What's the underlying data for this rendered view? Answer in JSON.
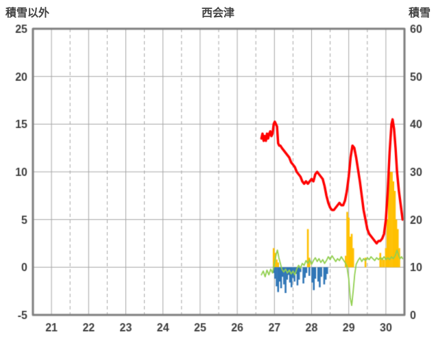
{
  "chart_data": {
    "type": "line",
    "title": "西会津",
    "grid": true,
    "legend": "none",
    "x_axis": {
      "min": 20.5,
      "max": 30.5,
      "ticks": [
        21,
        22,
        23,
        24,
        25,
        26,
        27,
        28,
        29,
        30
      ],
      "minor_ticks": [
        21.5,
        22.5,
        23.5,
        24.5,
        25.5,
        26.5,
        27.5,
        28.5,
        29.5
      ]
    },
    "left_axis": {
      "title": "積雪以外",
      "min": -5,
      "max": 25,
      "ticks": [
        25,
        20,
        15,
        10,
        5,
        0,
        -5
      ]
    },
    "right_axis": {
      "title": "積雪",
      "min": 0,
      "max": 60,
      "ticks": [
        60,
        50,
        40,
        30,
        20,
        10,
        0
      ]
    },
    "colors": {
      "border": "#7F7F7F",
      "grid": "#A6A6A6",
      "tick_text": "#404040",
      "red_line": "#FF0000",
      "green_line": "#92D050",
      "orange_bars": "#FFC000",
      "blue_bars": "#2E75B6"
    },
    "series": [
      {
        "name": "orange_bars",
        "type": "bar",
        "axis": "left",
        "color": "#FFC000",
        "bar_width": 2.6,
        "points": [
          [
            26.98,
            2
          ],
          [
            27.02,
            1.5
          ],
          [
            27.06,
            0.8
          ],
          [
            27.1,
            0.5
          ],
          [
            27.9,
            4
          ],
          [
            27.94,
            1
          ],
          [
            28.92,
            1.2
          ],
          [
            28.96,
            5.8
          ],
          [
            29,
            5.2
          ],
          [
            29.04,
            3.2
          ],
          [
            29.08,
            3.5
          ],
          [
            29.12,
            2
          ],
          [
            29.45,
            1
          ],
          [
            29.85,
            1.5
          ],
          [
            29.9,
            1
          ],
          [
            29.95,
            0.8
          ],
          [
            30,
            2
          ],
          [
            30.04,
            5
          ],
          [
            30.08,
            9
          ],
          [
            30.12,
            10
          ],
          [
            30.16,
            10
          ],
          [
            30.2,
            9
          ],
          [
            30.24,
            8
          ],
          [
            30.28,
            5
          ],
          [
            30.32,
            4
          ],
          [
            30.36,
            2
          ]
        ]
      },
      {
        "name": "blue_bars",
        "type": "bar",
        "axis": "left",
        "color": "#2E75B6",
        "bar_width": 2.6,
        "points": [
          [
            26.98,
            -0.6
          ],
          [
            27.02,
            -1.2
          ],
          [
            27.06,
            -2
          ],
          [
            27.1,
            -2.6
          ],
          [
            27.14,
            -1.5
          ],
          [
            27.18,
            -2.2
          ],
          [
            27.22,
            -1
          ],
          [
            27.26,
            -1.8
          ],
          [
            27.3,
            -2.7
          ],
          [
            27.34,
            -1.3
          ],
          [
            27.38,
            -0.8
          ],
          [
            27.42,
            -1.6
          ],
          [
            27.46,
            -2.1
          ],
          [
            27.5,
            -1.1
          ],
          [
            27.54,
            -1.5
          ],
          [
            27.58,
            -0.7
          ],
          [
            27.62,
            -1.9
          ],
          [
            27.66,
            -1.3
          ],
          [
            27.7,
            -0.5
          ],
          [
            27.78,
            -1.7
          ],
          [
            27.82,
            -1.1
          ],
          [
            27.86,
            -0.6
          ],
          [
            27.94,
            -0.9
          ],
          [
            28.02,
            -1.6
          ],
          [
            28.06,
            -2.4
          ],
          [
            28.1,
            -1.2
          ],
          [
            28.18,
            -1.5
          ],
          [
            28.22,
            -2.1
          ],
          [
            28.26,
            -1
          ],
          [
            28.34,
            -1.8
          ],
          [
            28.38,
            -1.3
          ],
          [
            28.42,
            -0.7
          ]
        ]
      },
      {
        "name": "green_line",
        "type": "line",
        "axis": "left",
        "color": "#92D050",
        "line_width": 1.8,
        "points": [
          [
            26.65,
            -0.8
          ],
          [
            26.7,
            -0.4
          ],
          [
            26.75,
            -1
          ],
          [
            26.8,
            -0.3
          ],
          [
            26.85,
            -0.8
          ],
          [
            26.9,
            -0.2
          ],
          [
            26.95,
            -0.6
          ],
          [
            27,
            0.4
          ],
          [
            27.05,
            1.4
          ],
          [
            27.08,
            1.8
          ],
          [
            27.12,
            1
          ],
          [
            27.16,
            0.4
          ],
          [
            27.2,
            -0.2
          ],
          [
            27.25,
            -0.5
          ],
          [
            27.3,
            -0.2
          ],
          [
            27.35,
            -0.6
          ],
          [
            27.4,
            -0.3
          ],
          [
            27.45,
            -0.7
          ],
          [
            27.5,
            -0.4
          ],
          [
            27.55,
            -0.8
          ],
          [
            27.6,
            -0.2
          ],
          [
            27.65,
            0.2
          ],
          [
            27.7,
            -0.1
          ],
          [
            27.75,
            0.4
          ],
          [
            27.8,
            0.2
          ],
          [
            27.85,
            0.7
          ],
          [
            27.9,
            0.4
          ],
          [
            27.95,
            0.8
          ],
          [
            28,
            0.3
          ],
          [
            28.05,
            0.7
          ],
          [
            28.1,
            1
          ],
          [
            28.15,
            0.6
          ],
          [
            28.2,
            0.9
          ],
          [
            28.25,
            0.5
          ],
          [
            28.3,
            0.8
          ],
          [
            28.35,
            0.4
          ],
          [
            28.4,
            0.7
          ],
          [
            28.45,
            1.1
          ],
          [
            28.5,
            0.8
          ],
          [
            28.55,
            1.2
          ],
          [
            28.6,
            0.9
          ],
          [
            28.65,
            0.6
          ],
          [
            28.7,
            0.9
          ],
          [
            28.75,
            0.7
          ],
          [
            28.8,
            1.1
          ],
          [
            28.85,
            0.8
          ],
          [
            28.9,
            0.5
          ],
          [
            28.95,
            0.1
          ],
          [
            29,
            -1.2
          ],
          [
            29.04,
            -3.2
          ],
          [
            29.08,
            -4
          ],
          [
            29.12,
            -2.5
          ],
          [
            29.16,
            -0.8
          ],
          [
            29.2,
            0.3
          ],
          [
            29.25,
            0.7
          ],
          [
            29.3,
            1
          ],
          [
            29.35,
            0.6
          ],
          [
            29.4,
            0.9
          ],
          [
            29.45,
            0.7
          ],
          [
            29.5,
            1
          ],
          [
            29.55,
            0.8
          ],
          [
            29.6,
            1.1
          ],
          [
            29.65,
            0.9
          ],
          [
            29.7,
            0.7
          ],
          [
            29.75,
            1
          ],
          [
            29.8,
            0.8
          ],
          [
            29.85,
            1
          ],
          [
            29.9,
            0.8
          ],
          [
            29.95,
            1.1
          ],
          [
            30,
            0.8
          ],
          [
            30.05,
            1
          ],
          [
            30.1,
            0.8
          ],
          [
            30.15,
            1.1
          ],
          [
            30.2,
            0.9
          ],
          [
            30.25,
            1.2
          ],
          [
            30.3,
            1.8
          ],
          [
            30.34,
            1.3
          ],
          [
            30.38,
            0.9
          ],
          [
            30.42,
            1.1
          ],
          [
            30.45,
            0.9
          ]
        ]
      },
      {
        "name": "red_line",
        "type": "line",
        "axis": "right",
        "color": "#FF0000",
        "line_width": 3.5,
        "points": [
          [
            26.65,
            37
          ],
          [
            26.68,
            38
          ],
          [
            26.71,
            36.5
          ],
          [
            26.74,
            37.5
          ],
          [
            26.77,
            36.5
          ],
          [
            26.8,
            38
          ],
          [
            26.83,
            37
          ],
          [
            26.86,
            38
          ],
          [
            26.89,
            38.5
          ],
          [
            26.92,
            37.5
          ],
          [
            26.95,
            38
          ],
          [
            26.98,
            40
          ],
          [
            27.01,
            40.5
          ],
          [
            27.04,
            40
          ],
          [
            27.07,
            39.5
          ],
          [
            27.1,
            36
          ],
          [
            27.13,
            35.5
          ],
          [
            27.16,
            35.5
          ],
          [
            27.2,
            35
          ],
          [
            27.25,
            34.5
          ],
          [
            27.3,
            34
          ],
          [
            27.35,
            33.5
          ],
          [
            27.4,
            33
          ],
          [
            27.45,
            32
          ],
          [
            27.5,
            31.5
          ],
          [
            27.55,
            31
          ],
          [
            27.6,
            30
          ],
          [
            27.65,
            29.5
          ],
          [
            27.7,
            29
          ],
          [
            27.75,
            28
          ],
          [
            27.8,
            27.5
          ],
          [
            27.85,
            28
          ],
          [
            27.9,
            27.5
          ],
          [
            27.95,
            28
          ],
          [
            28,
            28.5
          ],
          [
            28.05,
            28
          ],
          [
            28.1,
            29.5
          ],
          [
            28.15,
            30
          ],
          [
            28.2,
            29.5
          ],
          [
            28.25,
            29
          ],
          [
            28.3,
            28.5
          ],
          [
            28.35,
            27
          ],
          [
            28.4,
            25
          ],
          [
            28.45,
            23.5
          ],
          [
            28.5,
            22.5
          ],
          [
            28.55,
            22
          ],
          [
            28.6,
            22
          ],
          [
            28.65,
            22.5
          ],
          [
            28.7,
            23
          ],
          [
            28.75,
            23.5
          ],
          [
            28.8,
            23
          ],
          [
            28.85,
            23
          ],
          [
            28.9,
            24
          ],
          [
            28.95,
            26
          ],
          [
            29,
            29
          ],
          [
            29.05,
            33
          ],
          [
            29.1,
            35.5
          ],
          [
            29.15,
            35
          ],
          [
            29.2,
            33
          ],
          [
            29.25,
            30.5
          ],
          [
            29.3,
            28
          ],
          [
            29.35,
            25
          ],
          [
            29.4,
            22
          ],
          [
            29.45,
            20
          ],
          [
            29.5,
            18
          ],
          [
            29.55,
            17
          ],
          [
            29.6,
            16.5
          ],
          [
            29.65,
            16
          ],
          [
            29.7,
            15.5
          ],
          [
            29.75,
            15
          ],
          [
            29.8,
            15.5
          ],
          [
            29.85,
            15.5
          ],
          [
            29.9,
            16
          ],
          [
            29.95,
            17
          ],
          [
            30,
            20
          ],
          [
            30.05,
            26
          ],
          [
            30.1,
            34
          ],
          [
            30.15,
            40
          ],
          [
            30.18,
            41
          ],
          [
            30.22,
            39
          ],
          [
            30.26,
            35
          ],
          [
            30.3,
            30
          ],
          [
            30.35,
            26
          ],
          [
            30.4,
            23
          ],
          [
            30.45,
            20
          ]
        ]
      }
    ]
  }
}
